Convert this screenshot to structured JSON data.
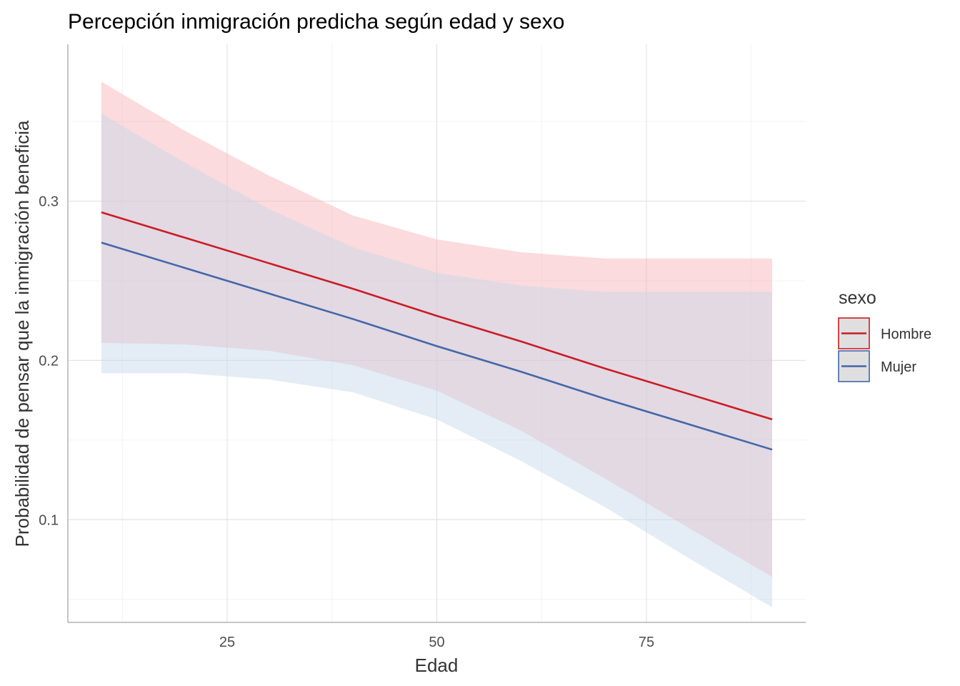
{
  "chart_data": {
    "type": "line",
    "title": "Percepción inmigración predicha según edad y sexo",
    "xlabel": "Edad",
    "ylabel": "Probabilidad de pensar que la inmigración beneficia",
    "xlim": [
      6,
      94
    ],
    "ylim": [
      0.0355,
      0.3985
    ],
    "x_ticks": [
      25,
      50,
      75
    ],
    "x_tick_labels": [
      "25",
      "50",
      "75"
    ],
    "y_ticks": [
      0.1,
      0.2,
      0.3
    ],
    "y_tick_labels": [
      "0.1",
      "0.2",
      "0.3"
    ],
    "x_minor_ticks": [
      12.5,
      37.5,
      62.5,
      87.5
    ],
    "y_minor_ticks": [
      0.05,
      0.15,
      0.25,
      0.35
    ],
    "grid": true,
    "legend": {
      "title": "sexo",
      "position": "right"
    },
    "series": [
      {
        "name": "Hombre",
        "color": "#cb1c23",
        "fill": "#f7b0b4",
        "x": [
          10,
          20,
          30,
          40,
          50,
          60,
          70,
          80,
          90
        ],
        "y": [
          0.293,
          0.277,
          0.261,
          0.245,
          0.228,
          0.212,
          0.195,
          0.179,
          0.163
        ],
        "lower": [
          0.211,
          0.21,
          0.206,
          0.197,
          0.181,
          0.156,
          0.126,
          0.095,
          0.064
        ],
        "upper": [
          0.375,
          0.344,
          0.316,
          0.291,
          0.276,
          0.268,
          0.264,
          0.264,
          0.264
        ]
      },
      {
        "name": "Mujer",
        "color": "#4367a8",
        "fill": "#c3d6eb",
        "x": [
          10,
          20,
          30,
          40,
          50,
          60,
          70,
          80,
          90
        ],
        "y": [
          0.274,
          0.258,
          0.242,
          0.226,
          0.209,
          0.193,
          0.176,
          0.16,
          0.144
        ],
        "lower": [
          0.192,
          0.192,
          0.188,
          0.18,
          0.163,
          0.137,
          0.108,
          0.076,
          0.045
        ],
        "upper": [
          0.355,
          0.324,
          0.295,
          0.271,
          0.255,
          0.247,
          0.243,
          0.243,
          0.243
        ]
      }
    ]
  }
}
